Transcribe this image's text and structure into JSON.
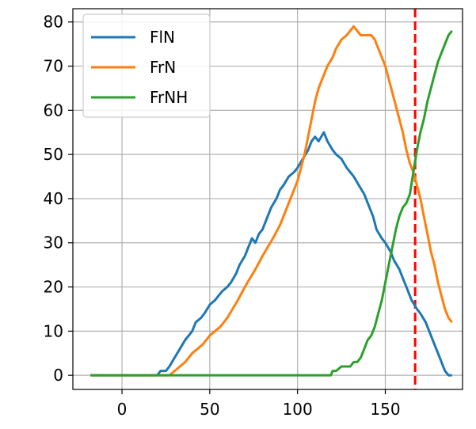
{
  "chart_data": {
    "type": "line",
    "title": "",
    "xlabel": "",
    "ylabel": "",
    "xlim": [
      -28,
      194
    ],
    "ylim": [
      -3.2,
      83
    ],
    "x_ticks": [
      0,
      50,
      100,
      150
    ],
    "y_ticks": [
      0,
      10,
      20,
      30,
      40,
      50,
      60,
      70,
      80
    ],
    "grid": true,
    "legend_position": "upper-left",
    "vline": {
      "x": 167,
      "color": "#ff0000",
      "style": "dashed"
    },
    "series": [
      {
        "name": "FlN",
        "color": "#1f77b4",
        "points": [
          [
            -18,
            0
          ],
          [
            20,
            0
          ],
          [
            22,
            1
          ],
          [
            25,
            1
          ],
          [
            27,
            2
          ],
          [
            30,
            4
          ],
          [
            33,
            6
          ],
          [
            36,
            8
          ],
          [
            38,
            9
          ],
          [
            40,
            10
          ],
          [
            42,
            12
          ],
          [
            45,
            13
          ],
          [
            47,
            14
          ],
          [
            50,
            16
          ],
          [
            53,
            17
          ],
          [
            55,
            18
          ],
          [
            57,
            19
          ],
          [
            60,
            20
          ],
          [
            62,
            21
          ],
          [
            65,
            23
          ],
          [
            67,
            25
          ],
          [
            70,
            27
          ],
          [
            72,
            29
          ],
          [
            74,
            31
          ],
          [
            76,
            30
          ],
          [
            78,
            32
          ],
          [
            80,
            33
          ],
          [
            82,
            35
          ],
          [
            85,
            38
          ],
          [
            88,
            40
          ],
          [
            90,
            42
          ],
          [
            92,
            43
          ],
          [
            95,
            45
          ],
          [
            98,
            46
          ],
          [
            100,
            47
          ],
          [
            103,
            49
          ],
          [
            106,
            51
          ],
          [
            108,
            53
          ],
          [
            110,
            54
          ],
          [
            112,
            53
          ],
          [
            115,
            55
          ],
          [
            117,
            53
          ],
          [
            120,
            51
          ],
          [
            122,
            50
          ],
          [
            125,
            49
          ],
          [
            128,
            47
          ],
          [
            130,
            46
          ],
          [
            132,
            45
          ],
          [
            135,
            43
          ],
          [
            138,
            41
          ],
          [
            140,
            39
          ],
          [
            143,
            36
          ],
          [
            145,
            33
          ],
          [
            148,
            31
          ],
          [
            150,
            30
          ],
          [
            153,
            28
          ],
          [
            155,
            26
          ],
          [
            158,
            24
          ],
          [
            160,
            22
          ],
          [
            163,
            19
          ],
          [
            165,
            17
          ],
          [
            168,
            15
          ],
          [
            170,
            14
          ],
          [
            173,
            12
          ],
          [
            175,
            10
          ],
          [
            178,
            7
          ],
          [
            180,
            5
          ],
          [
            182,
            3
          ],
          [
            184,
            1
          ],
          [
            186,
            0
          ],
          [
            188,
            0
          ]
        ]
      },
      {
        "name": "FrN",
        "color": "#ff7f0e",
        "points": [
          [
            -18,
            0
          ],
          [
            27,
            0
          ],
          [
            30,
            1
          ],
          [
            33,
            2
          ],
          [
            36,
            3
          ],
          [
            40,
            5
          ],
          [
            43,
            6
          ],
          [
            46,
            7
          ],
          [
            50,
            9
          ],
          [
            53,
            10
          ],
          [
            56,
            11
          ],
          [
            60,
            13
          ],
          [
            63,
            15
          ],
          [
            66,
            17
          ],
          [
            70,
            20
          ],
          [
            73,
            22
          ],
          [
            76,
            24
          ],
          [
            80,
            27
          ],
          [
            83,
            29
          ],
          [
            86,
            31
          ],
          [
            90,
            34
          ],
          [
            93,
            37
          ],
          [
            96,
            40
          ],
          [
            98,
            42
          ],
          [
            100,
            44
          ],
          [
            102,
            47
          ],
          [
            104,
            50
          ],
          [
            106,
            54
          ],
          [
            108,
            58
          ],
          [
            110,
            62
          ],
          [
            112,
            65
          ],
          [
            115,
            68
          ],
          [
            117,
            70
          ],
          [
            120,
            72
          ],
          [
            122,
            74
          ],
          [
            125,
            76
          ],
          [
            128,
            77
          ],
          [
            130,
            78
          ],
          [
            132,
            79
          ],
          [
            134,
            78
          ],
          [
            136,
            77
          ],
          [
            138,
            77
          ],
          [
            140,
            77
          ],
          [
            142,
            77
          ],
          [
            144,
            76
          ],
          [
            146,
            74
          ],
          [
            148,
            72
          ],
          [
            150,
            70
          ],
          [
            152,
            67
          ],
          [
            154,
            64
          ],
          [
            156,
            61
          ],
          [
            158,
            58
          ],
          [
            160,
            55
          ],
          [
            162,
            51
          ],
          [
            164,
            48
          ],
          [
            166,
            46
          ],
          [
            168,
            43
          ],
          [
            170,
            40
          ],
          [
            172,
            36
          ],
          [
            174,
            32
          ],
          [
            176,
            28
          ],
          [
            178,
            25
          ],
          [
            180,
            21
          ],
          [
            182,
            18
          ],
          [
            184,
            15
          ],
          [
            186,
            13
          ],
          [
            188,
            12
          ]
        ]
      },
      {
        "name": "FrNH",
        "color": "#2ca02c",
        "points": [
          [
            -18,
            0
          ],
          [
            119,
            0
          ],
          [
            120,
            1
          ],
          [
            122,
            1
          ],
          [
            125,
            2
          ],
          [
            128,
            2
          ],
          [
            130,
            2
          ],
          [
            132,
            3
          ],
          [
            134,
            3
          ],
          [
            136,
            4
          ],
          [
            138,
            6
          ],
          [
            140,
            8
          ],
          [
            142,
            9
          ],
          [
            144,
            11
          ],
          [
            146,
            14
          ],
          [
            148,
            17
          ],
          [
            150,
            21
          ],
          [
            152,
            25
          ],
          [
            154,
            29
          ],
          [
            156,
            33
          ],
          [
            158,
            36
          ],
          [
            160,
            38
          ],
          [
            162,
            39
          ],
          [
            164,
            41
          ],
          [
            166,
            46
          ],
          [
            168,
            51
          ],
          [
            170,
            55
          ],
          [
            172,
            58
          ],
          [
            174,
            62
          ],
          [
            176,
            65
          ],
          [
            178,
            68
          ],
          [
            180,
            71
          ],
          [
            182,
            73
          ],
          [
            184,
            75
          ],
          [
            186,
            77
          ],
          [
            188,
            78
          ]
        ]
      }
    ]
  }
}
